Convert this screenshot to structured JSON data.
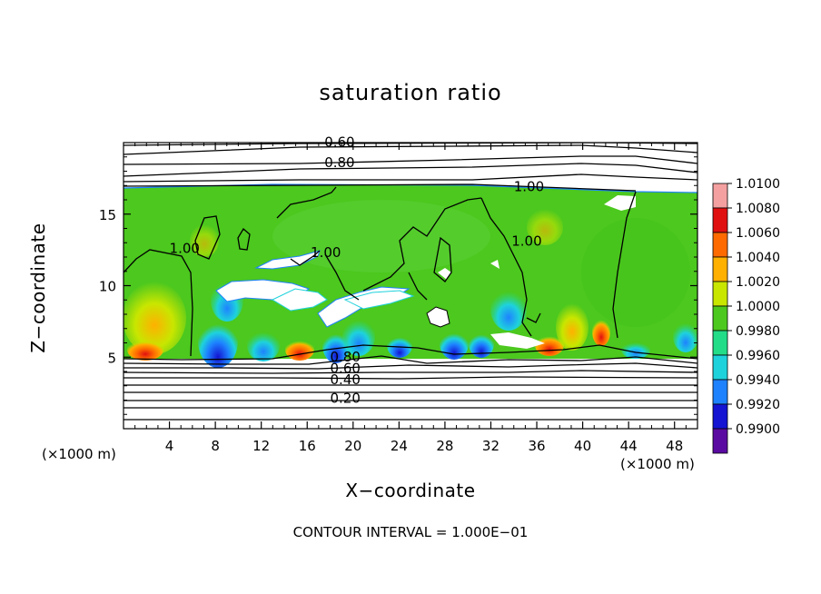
{
  "chart_data": {
    "type": "heatmap",
    "title": "saturation ratio",
    "xlabel": "X−coordinate",
    "ylabel": "Z−coordinate",
    "x_unit": "(×1000 m)",
    "z_unit": "(×1000 m)",
    "xlim": [
      0,
      50
    ],
    "ylim": [
      0,
      20
    ],
    "x_ticks": [
      4,
      8,
      12,
      16,
      20,
      24,
      28,
      32,
      36,
      40,
      44,
      48
    ],
    "y_ticks": [
      5,
      10,
      15
    ],
    "colorbar": {
      "levels": [
        "1.0100",
        "1.0080",
        "1.0060",
        "1.0040",
        "1.0020",
        "1.0000",
        "0.9980",
        "0.9960",
        "0.9940",
        "0.9920",
        "0.9900"
      ],
      "colors": [
        "#f4a0a0",
        "#e01010",
        "#ff6a00",
        "#ffb000",
        "#c8e600",
        "#4cc81e",
        "#22dc88",
        "#1ed2dc",
        "#1e82ff",
        "#1414d2",
        "#5a0aa0"
      ]
    },
    "contour_labels": [
      {
        "text": "0.60",
        "x": 17.5,
        "z": 19.7
      },
      {
        "text": "0.80",
        "x": 17.5,
        "z": 18.3
      },
      {
        "text": "1.00",
        "x": 34.0,
        "z": 16.6
      },
      {
        "text": "1.00",
        "x": 4.0,
        "z": 12.3
      },
      {
        "text": "1.00",
        "x": 16.3,
        "z": 12.0
      },
      {
        "text": "1.00",
        "x": 33.8,
        "z": 12.8
      },
      {
        "text": "0.80",
        "x": 18.0,
        "z": 4.7
      },
      {
        "text": "0.60",
        "x": 18.0,
        "z": 3.9
      },
      {
        "text": "0.40",
        "x": 18.0,
        "z": 3.1
      },
      {
        "text": "0.20",
        "x": 18.0,
        "z": 1.8
      }
    ],
    "contour_interval_text": "CONTOUR INTERVAL = 1.000E−01"
  }
}
